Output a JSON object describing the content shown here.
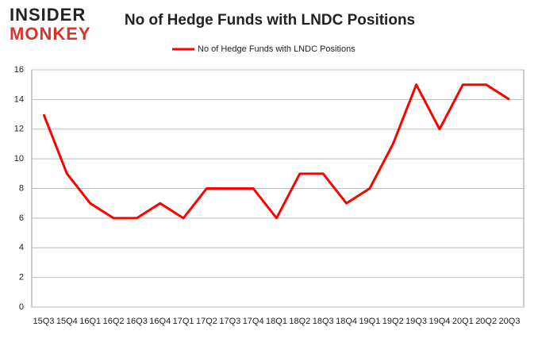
{
  "logo": {
    "line1": "INSIDER",
    "line2": "MONKEY"
  },
  "chart_data": {
    "type": "line",
    "title": "No of Hedge Funds with LNDC Positions",
    "categories": [
      "15Q3",
      "15Q4",
      "16Q1",
      "16Q2",
      "16Q3",
      "16Q4",
      "17Q1",
      "17Q2",
      "17Q3",
      "17Q4",
      "18Q1",
      "18Q2",
      "18Q3",
      "18Q4",
      "19Q1",
      "19Q2",
      "19Q3",
      "19Q4",
      "20Q1",
      "20Q2",
      "20Q3"
    ],
    "series": [
      {
        "name": "No of Hedge Funds with LNDC Positions",
        "color": "#ff0000",
        "values": [
          13,
          9,
          7,
          6,
          6,
          7,
          6,
          8,
          8,
          8,
          6,
          9,
          9,
          7,
          8,
          11,
          15,
          12,
          15,
          15,
          14
        ]
      }
    ],
    "ylim": [
      0,
      16
    ],
    "yticks": [
      0,
      2,
      4,
      6,
      8,
      10,
      12,
      14,
      16
    ],
    "grid": true,
    "legend": "top"
  }
}
